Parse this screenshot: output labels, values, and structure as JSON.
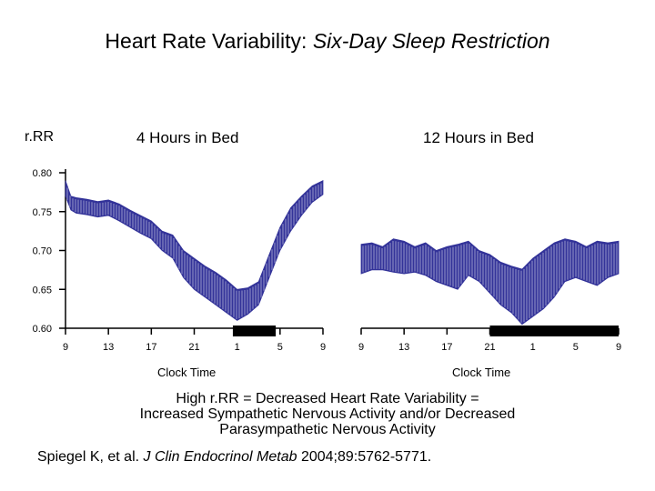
{
  "title": {
    "main": "Heart Rate Variability:",
    "italic": "Six-Day Sleep Restriction"
  },
  "colors": {
    "series": "#333399",
    "axis": "#000000",
    "night_bar": "#000000"
  },
  "chart_data": {
    "type": "area",
    "ylabel": "r.RR",
    "ylim": [
      0.6,
      0.8
    ],
    "yticks": [
      "0.80",
      "0.75",
      "0.70",
      "0.65",
      "0.60"
    ],
    "panels": [
      {
        "label": "4 Hours in Bed",
        "xlabel": "Clock Time",
        "xticks": [
          "9",
          "13",
          "17",
          "21",
          "1",
          "5",
          "9"
        ],
        "tick_hours": [
          0,
          4,
          8,
          12,
          16,
          20,
          24
        ],
        "night_hours": [
          15.6,
          19.6
        ],
        "x_hours": [
          0,
          0.5,
          1,
          2,
          3,
          4,
          5,
          6,
          7,
          8,
          9,
          10,
          11,
          12,
          13,
          14,
          15,
          16,
          17,
          18,
          19,
          20,
          21,
          22,
          23,
          24
        ],
        "upper": [
          0.79,
          0.77,
          0.768,
          0.766,
          0.763,
          0.765,
          0.76,
          0.752,
          0.745,
          0.738,
          0.725,
          0.72,
          0.7,
          0.69,
          0.68,
          0.672,
          0.662,
          0.65,
          0.652,
          0.66,
          0.695,
          0.73,
          0.755,
          0.77,
          0.783,
          0.79
        ],
        "lower": [
          0.77,
          0.752,
          0.748,
          0.746,
          0.743,
          0.745,
          0.738,
          0.73,
          0.722,
          0.715,
          0.7,
          0.69,
          0.665,
          0.65,
          0.64,
          0.63,
          0.62,
          0.61,
          0.618,
          0.63,
          0.665,
          0.7,
          0.725,
          0.745,
          0.762,
          0.772
        ]
      },
      {
        "label": "12 Hours in Bed",
        "xlabel": "Clock Time",
        "xticks": [
          "9",
          "13",
          "17",
          "21",
          "1",
          "5",
          "9"
        ],
        "tick_hours": [
          0,
          4,
          8,
          12,
          16,
          20,
          24
        ],
        "night_hours": [
          12,
          24
        ],
        "x_hours": [
          0,
          1,
          2,
          3,
          4,
          5,
          6,
          7,
          8,
          9,
          10,
          11,
          12,
          13,
          14,
          15,
          16,
          17,
          18,
          19,
          20,
          21,
          22,
          23,
          24
        ],
        "upper": [
          0.708,
          0.71,
          0.705,
          0.715,
          0.712,
          0.705,
          0.71,
          0.7,
          0.705,
          0.708,
          0.712,
          0.7,
          0.695,
          0.685,
          0.68,
          0.676,
          0.69,
          0.7,
          0.71,
          0.715,
          0.712,
          0.705,
          0.712,
          0.71,
          0.712
        ],
        "lower": [
          0.67,
          0.675,
          0.675,
          0.672,
          0.67,
          0.672,
          0.668,
          0.66,
          0.655,
          0.65,
          0.668,
          0.66,
          0.645,
          0.63,
          0.62,
          0.605,
          0.615,
          0.625,
          0.64,
          0.66,
          0.665,
          0.66,
          0.655,
          0.665,
          0.67
        ]
      }
    ]
  },
  "caption": {
    "line1": "High r.RR = Decreased Heart Rate Variability =",
    "line2": "Increased Sympathetic Nervous Activity and/or Decreased",
    "line3": "Parasympathetic Nervous Activity"
  },
  "citation": {
    "authors": "Spiegel K, et al.",
    "journal": "J Clin Endocrinol Metab",
    "details": "2004;89:5762-5771."
  }
}
